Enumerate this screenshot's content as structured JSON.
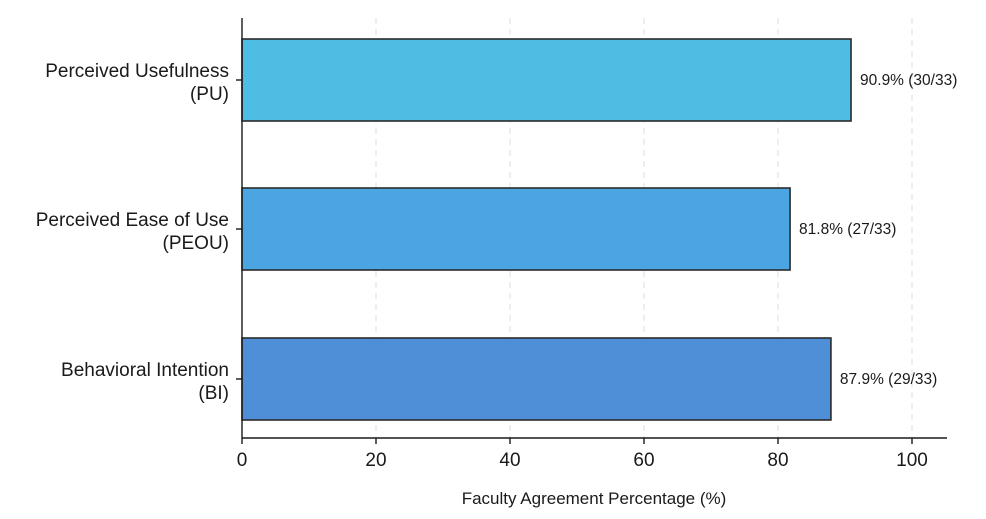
{
  "chart_data": {
    "type": "bar",
    "orientation": "horizontal",
    "categories": [
      [
        "Perceived Usefulness",
        "(PU)"
      ],
      [
        "Perceived Ease of Use",
        "(PEOU)"
      ],
      [
        "Behavioral Intention",
        "(BI)"
      ]
    ],
    "values": [
      90.9,
      81.8,
      87.9
    ],
    "data_labels": [
      "90.9% (30/33)",
      "81.8% (27/33)",
      "87.9% (29/33)"
    ],
    "bar_colors": [
      "#4dbde3",
      "#4aa5e2",
      "#4f8fd8"
    ],
    "bar_edge_color": "#2b2b2b",
    "title": "",
    "xlabel": "Faculty Agreement Percentage (%)",
    "ylabel": "",
    "xlim": [
      0,
      105
    ],
    "xticks": [
      0,
      20,
      40,
      60,
      80,
      100
    ],
    "xtick_labels": [
      "0",
      "20",
      "40",
      "60",
      "80",
      "100"
    ],
    "grid": "vertical-dashed"
  }
}
